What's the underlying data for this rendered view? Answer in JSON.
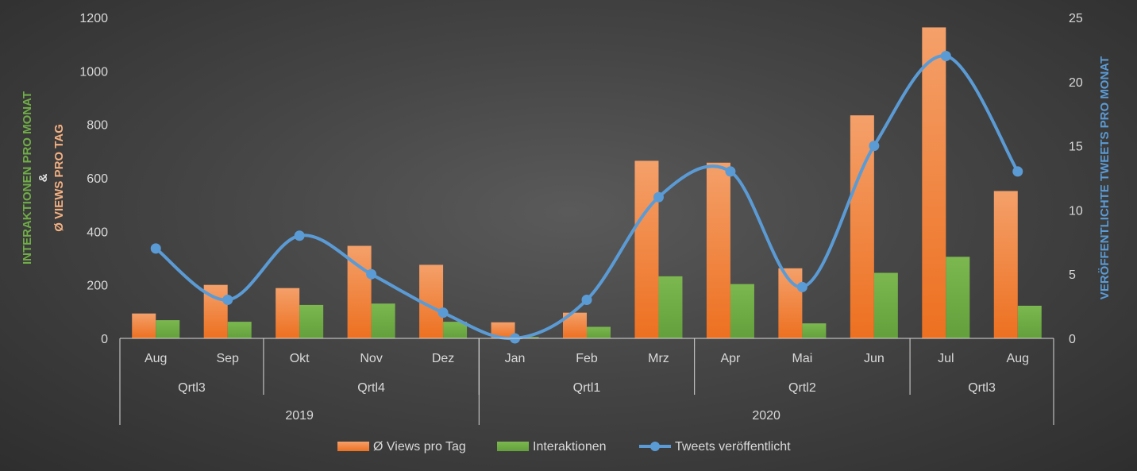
{
  "chart_data": {
    "type": "bar",
    "categories": [
      "Aug",
      "Sep",
      "Okt",
      "Nov",
      "Dez",
      "Jan",
      "Feb",
      "Mrz",
      "Apr",
      "Mai",
      "Jun",
      "Jul",
      "Aug"
    ],
    "quarters": [
      {
        "label": "Qrtl3",
        "span": 2
      },
      {
        "label": "Qrtl4",
        "span": 3
      },
      {
        "label": "Qrtl1",
        "span": 3
      },
      {
        "label": "Qrtl2",
        "span": 3
      },
      {
        "label": "Qrtl3",
        "span": 2
      }
    ],
    "years": [
      {
        "label": "2019",
        "span": 5
      },
      {
        "label": "2020",
        "span": 8
      }
    ],
    "series": [
      {
        "name": "Ø Views pro Tag",
        "kind": "bar",
        "axis": "left",
        "color": "#ed7d31",
        "values": [
          93,
          200,
          188,
          346,
          275,
          60,
          96,
          664,
          657,
          262,
          834,
          1163,
          551
        ]
      },
      {
        "name": "Interaktionen",
        "kind": "bar",
        "axis": "left",
        "color": "#70ad47",
        "values": [
          68,
          62,
          125,
          130,
          62,
          5,
          43,
          232,
          203,
          56,
          245,
          305,
          122
        ]
      },
      {
        "name": "Tweets veröffentlicht",
        "kind": "line",
        "axis": "right",
        "color": "#5b9bd5",
        "values": [
          7,
          3,
          8,
          5,
          2,
          0,
          3,
          11,
          13,
          4,
          15,
          22,
          13
        ]
      }
    ],
    "y_left": {
      "min": 0,
      "max": 1200,
      "ticks": [
        0,
        200,
        400,
        600,
        800,
        1000,
        1200
      ],
      "label_line1": "INTERAKTIONEN PRO MONAT",
      "label_line2": "&",
      "label_line3": "Ø VIEWS PRO TAG"
    },
    "y_right": {
      "min": 0,
      "max": 25,
      "ticks": [
        0,
        5,
        10,
        15,
        20,
        25
      ],
      "label": "VERÖFFENTLICHTE TWEETS PRO MONAT"
    },
    "grid": false,
    "legend_position": "bottom"
  },
  "legend": {
    "views": "Ø Views pro Tag",
    "interactions": "Interaktionen",
    "tweets": "Tweets veröffentlicht"
  }
}
